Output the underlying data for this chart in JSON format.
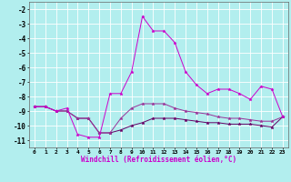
{
  "xlabel": "Windchill (Refroidissement éolien,°C)",
  "bg_color": "#b2eeee",
  "grid_color": "#ffffff",
  "line_color1": "#cc00cc",
  "line_color2": "#993399",
  "line_color3": "#660066",
  "xlim": [
    -0.5,
    23.5
  ],
  "ylim": [
    -11.5,
    -1.5
  ],
  "yticks": [
    -2,
    -3,
    -4,
    -5,
    -6,
    -7,
    -8,
    -9,
    -10,
    -11
  ],
  "xticks": [
    0,
    1,
    2,
    3,
    4,
    5,
    6,
    7,
    8,
    9,
    10,
    11,
    12,
    13,
    14,
    15,
    16,
    17,
    18,
    19,
    20,
    21,
    22,
    23
  ],
  "series1_x": [
    0,
    1,
    2,
    3,
    4,
    5,
    6,
    7,
    8,
    9,
    10,
    11,
    12,
    13,
    14,
    15,
    16,
    17,
    18,
    19,
    20,
    21,
    22,
    23
  ],
  "series1_y": [
    -8.7,
    -8.7,
    -9.0,
    -8.8,
    -10.6,
    -10.8,
    -10.8,
    -7.8,
    -7.8,
    -6.3,
    -2.5,
    -3.5,
    -3.5,
    -4.3,
    -6.3,
    -7.2,
    -7.8,
    -7.5,
    -7.5,
    -7.8,
    -8.2,
    -7.3,
    -7.5,
    -9.4
  ],
  "series2_x": [
    0,
    1,
    2,
    3,
    4,
    5,
    6,
    7,
    8,
    9,
    10,
    11,
    12,
    13,
    14,
    15,
    16,
    17,
    18,
    19,
    20,
    21,
    22,
    23
  ],
  "series2_y": [
    -8.7,
    -8.7,
    -9.0,
    -9.0,
    -9.5,
    -9.5,
    -10.5,
    -10.5,
    -9.5,
    -8.8,
    -8.5,
    -8.5,
    -8.5,
    -8.8,
    -9.0,
    -9.1,
    -9.2,
    -9.4,
    -9.5,
    -9.5,
    -9.6,
    -9.7,
    -9.7,
    -9.4
  ],
  "series3_x": [
    0,
    1,
    2,
    3,
    4,
    5,
    6,
    7,
    8,
    9,
    10,
    11,
    12,
    13,
    14,
    15,
    16,
    17,
    18,
    19,
    20,
    21,
    22,
    23
  ],
  "series3_y": [
    -8.7,
    -8.7,
    -9.0,
    -9.0,
    -9.5,
    -9.5,
    -10.5,
    -10.5,
    -10.3,
    -10.0,
    -9.8,
    -9.5,
    -9.5,
    -9.5,
    -9.6,
    -9.7,
    -9.8,
    -9.8,
    -9.9,
    -9.9,
    -9.9,
    -10.0,
    -10.1,
    -9.4
  ]
}
